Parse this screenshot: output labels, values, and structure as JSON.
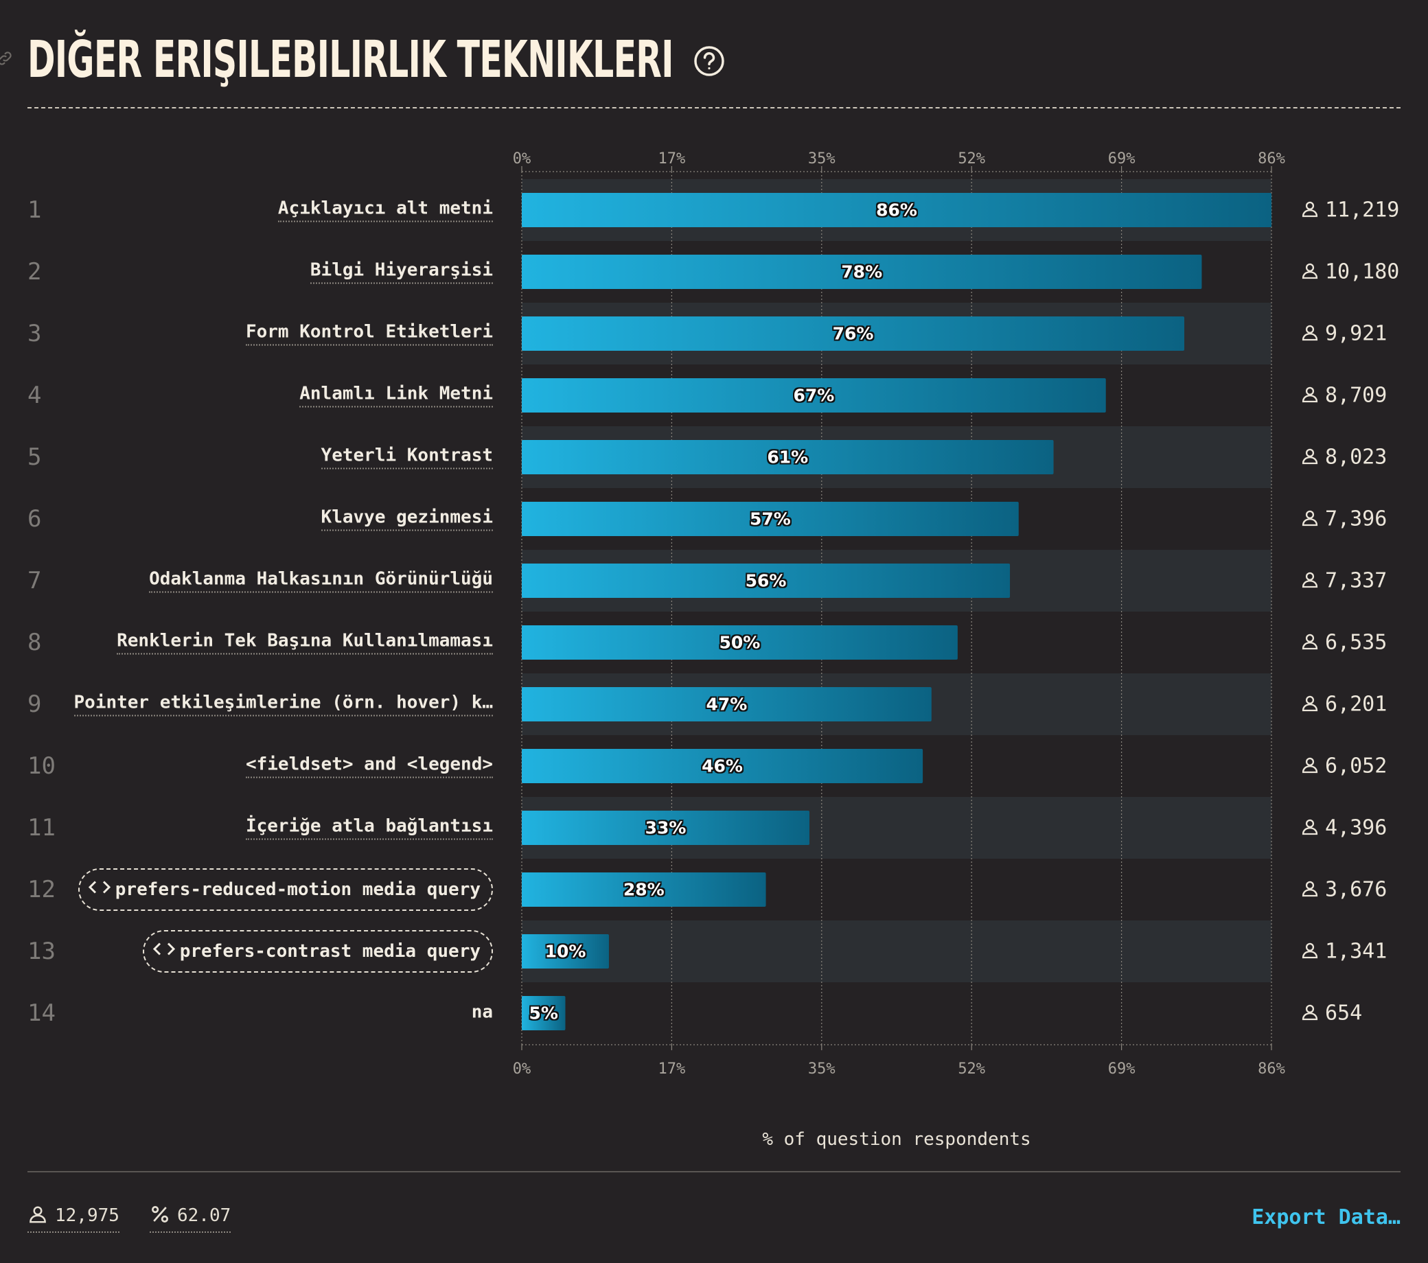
{
  "title": "DIĞER ERIŞILEBILIRLIK TEKNIKLERI",
  "icons": {
    "link": "link-icon",
    "help": "help-circle-icon",
    "user": "user-icon",
    "percent": "percent-icon",
    "code": "code-icon"
  },
  "colors": {
    "background": "#252224",
    "band": "#2c2f33",
    "bar_start": "#21b3e0",
    "bar_end": "#0b6282",
    "accent": "#3fc4ee"
  },
  "chart_data": {
    "type": "bar",
    "orientation": "horizontal",
    "xlim": [
      0,
      86
    ],
    "xticks": [
      "0%",
      "17%",
      "35%",
      "52%",
      "69%",
      "86%"
    ],
    "xtick_values": [
      0,
      17.2,
      34.4,
      51.6,
      68.8,
      86
    ],
    "xlabel": "% of question respondents",
    "rows": [
      {
        "rank": "1",
        "label": "Açıklayıcı alt metni",
        "value": 86,
        "value_label": "86%",
        "count": "11,219",
        "style": "dotted"
      },
      {
        "rank": "2",
        "label": "Bilgi Hiyerarşisi",
        "value": 78,
        "value_label": "78%",
        "count": "10,180",
        "style": "dotted"
      },
      {
        "rank": "3",
        "label": "Form Kontrol Etiketleri",
        "value": 76,
        "value_label": "76%",
        "count": "9,921",
        "style": "dotted"
      },
      {
        "rank": "4",
        "label": "Anlamlı Link Metni",
        "value": 67,
        "value_label": "67%",
        "count": "8,709",
        "style": "dotted"
      },
      {
        "rank": "5",
        "label": "Yeterli Kontrast",
        "value": 61,
        "value_label": "61%",
        "count": "8,023",
        "style": "dotted"
      },
      {
        "rank": "6",
        "label": "Klavye gezinmesi",
        "value": 57,
        "value_label": "57%",
        "count": "7,396",
        "style": "dotted"
      },
      {
        "rank": "7",
        "label": "Odaklanma Halkasının Görünürlüğü",
        "value": 56,
        "value_label": "56%",
        "count": "7,337",
        "style": "dotted"
      },
      {
        "rank": "8",
        "label": "Renklerin Tek Başına Kullanılmaması",
        "value": 50,
        "value_label": "50%",
        "count": "6,535",
        "style": "dotted"
      },
      {
        "rank": "9",
        "label": "Pointer etkileşimlerine (örn. hover) k…",
        "value": 47,
        "value_label": "47%",
        "count": "6,201",
        "style": "dotted"
      },
      {
        "rank": "10",
        "label": "<fieldset> and <legend>",
        "value": 46,
        "value_label": "46%",
        "count": "6,052",
        "style": "dotted"
      },
      {
        "rank": "11",
        "label": "İçeriğe atla bağlantısı",
        "value": 33,
        "value_label": "33%",
        "count": "4,396",
        "style": "dotted"
      },
      {
        "rank": "12",
        "label": "prefers-reduced-motion media query",
        "value": 28,
        "value_label": "28%",
        "count": "3,676",
        "style": "pill"
      },
      {
        "rank": "13",
        "label": "prefers-contrast media query",
        "value": 10,
        "value_label": "10%",
        "count": "1,341",
        "style": "pill"
      },
      {
        "rank": "14",
        "label": "na",
        "value": 5,
        "value_label": "5%",
        "count": "654",
        "style": "plain"
      }
    ]
  },
  "footer": {
    "respondents": "12,975",
    "percent": "62.07",
    "export_label": "Export Data…"
  }
}
